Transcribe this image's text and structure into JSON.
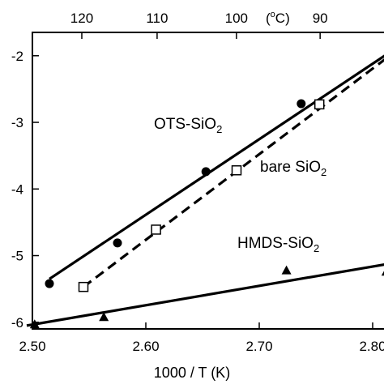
{
  "chart_data": {
    "type": "scatter",
    "title": "",
    "xlabel": "1000 / T (K)",
    "x2label": "(°C)",
    "x2label_parts": {
      "open": "(",
      "sup": "o",
      "rest": "C)"
    },
    "ylabel": "",
    "xlim": [
      2.5,
      2.81
    ],
    "ylim": [
      -6.1,
      -1.65
    ],
    "x_ticks": [
      2.5,
      2.6,
      2.7,
      2.8
    ],
    "x_tick_labels": [
      "2.50",
      "2.60",
      "2.70",
      "2.80"
    ],
    "y_ticks": [
      -2,
      -3,
      -4,
      -5,
      -6
    ],
    "y_tick_labels": [
      "-2",
      "-3",
      "-4",
      "-5",
      "-6"
    ],
    "top_ticks_celsius": [
      120,
      110,
      100,
      90
    ],
    "top_tick_labels": [
      "120",
      "110",
      "100",
      "90"
    ],
    "grid": false,
    "series": [
      {
        "label": {
          "main": "OTS-SiO",
          "sub": "2"
        },
        "marker": "filled-circle",
        "line_style": "solid",
        "x": [
          2.515,
          2.575,
          2.653,
          2.737
        ],
        "y": [
          -5.42,
          -4.81,
          -3.74,
          -2.72
        ],
        "fit": {
          "x": [
            2.515,
            2.815
          ],
          "y": [
            -5.35,
            -1.95
          ]
        }
      },
      {
        "label": {
          "main": "bare SiO",
          "sub": "2"
        },
        "marker": "open-square",
        "line_style": "dashed",
        "x": [
          2.545,
          2.609,
          2.68,
          2.753
        ],
        "y": [
          -5.47,
          -4.61,
          -3.72,
          -2.73
        ],
        "fit": {
          "x": [
            2.545,
            2.815
          ],
          "y": [
            -5.47,
            -2.0
          ]
        }
      },
      {
        "label": {
          "main": "HMDS-SiO",
          "sub": "2"
        },
        "marker": "filled-triangle",
        "line_style": "solid",
        "x": [
          2.502,
          2.563,
          2.724,
          2.812
        ],
        "y": [
          -6.03,
          -5.92,
          -5.22,
          -5.24
        ],
        "fit": {
          "x": [
            2.495,
            2.815
          ],
          "y": [
            -6.05,
            -5.12
          ]
        }
      }
    ]
  }
}
